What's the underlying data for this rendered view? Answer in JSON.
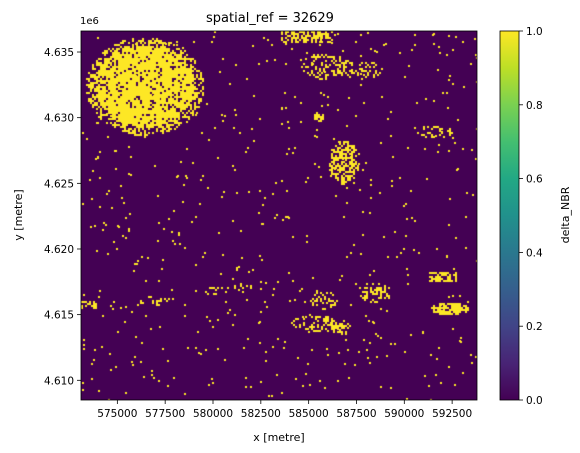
{
  "chart_data": {
    "type": "heatmap",
    "title": "spatial_ref = 32629",
    "xlabel": "x [metre]",
    "ylabel": "y [metre]",
    "y_offset_label": "1e6",
    "colorbar_label": "delta_NBR",
    "xlim": [
      573100,
      593800
    ],
    "ylim": [
      4.6085,
      4.6366
    ],
    "x_ticks": [
      {
        "value": 575000,
        "label": "575000"
      },
      {
        "value": 577500,
        "label": "577500"
      },
      {
        "value": 580000,
        "label": "580000"
      },
      {
        "value": 582500,
        "label": "582500"
      },
      {
        "value": 585000,
        "label": "585000"
      },
      {
        "value": 587500,
        "label": "587500"
      },
      {
        "value": 590000,
        "label": "590000"
      },
      {
        "value": 592500,
        "label": "592500"
      }
    ],
    "y_ticks": [
      {
        "value": 4.61,
        "label": "4.610"
      },
      {
        "value": 4.615,
        "label": "4.615"
      },
      {
        "value": 4.62,
        "label": "4.620"
      },
      {
        "value": 4.625,
        "label": "4.625"
      },
      {
        "value": 4.63,
        "label": "4.630"
      },
      {
        "value": 4.635,
        "label": "4.635"
      }
    ],
    "colorbar": {
      "range": [
        0.0,
        1.0
      ],
      "colormap": "viridis",
      "ticks": [
        {
          "value": 0.0,
          "label": "0.0"
        },
        {
          "value": 0.2,
          "label": "0.2"
        },
        {
          "value": 0.4,
          "label": "0.4"
        },
        {
          "value": 0.6,
          "label": "0.6"
        },
        {
          "value": 0.8,
          "label": "0.8"
        },
        {
          "value": 1.0,
          "label": "1.0"
        }
      ]
    },
    "background_value": 0,
    "colors": {
      "low": "#440154",
      "high": "#fde725"
    },
    "patches": [
      {
        "x": [
          573300,
          579500
        ],
        "y": [
          4.6287,
          4.6362
        ],
        "value": 1,
        "shape": "blob",
        "density": 0.85
      },
      {
        "x": [
          583600,
          586200
        ],
        "y": [
          4.6357,
          4.6367
        ],
        "value": 1,
        "shape": "strip",
        "density": 0.6
      },
      {
        "x": [
          584500,
          587000
        ],
        "y": [
          4.633,
          4.635
        ],
        "value": 1,
        "shape": "cluster",
        "density": 0.35
      },
      {
        "x": [
          586300,
          588800
        ],
        "y": [
          4.633,
          4.6345
        ],
        "value": 1,
        "shape": "cluster",
        "density": 0.3
      },
      {
        "x": [
          586000,
          587600
        ],
        "y": [
          4.625,
          4.6283
        ],
        "value": 1,
        "shape": "cluster",
        "density": 0.55
      },
      {
        "x": [
          585200,
          585800
        ],
        "y": [
          4.6298,
          4.6304
        ],
        "value": 1,
        "shape": "dot",
        "density": 0.9
      },
      {
        "x": [
          590500,
          592500
        ],
        "y": [
          4.6285,
          4.6295
        ],
        "value": 1,
        "shape": "cluster",
        "density": 0.3
      },
      {
        "x": [
          591300,
          593300
        ],
        "y": [
          4.615,
          4.616
        ],
        "value": 1,
        "shape": "cluster",
        "density": 0.8
      },
      {
        "x": [
          591300,
          592700
        ],
        "y": [
          4.6175,
          4.6182
        ],
        "value": 1,
        "shape": "strip",
        "density": 0.6
      },
      {
        "x": [
          587500,
          589300
        ],
        "y": [
          4.616,
          4.6175
        ],
        "value": 1,
        "shape": "cluster",
        "density": 0.4
      },
      {
        "x": [
          584000,
          587000
        ],
        "y": [
          4.6138,
          4.615
        ],
        "value": 1,
        "shape": "cluster",
        "density": 0.35
      },
      {
        "x": [
          585000,
          586500
        ],
        "y": [
          4.6155,
          4.617
        ],
        "value": 1,
        "shape": "cluster",
        "density": 0.25
      },
      {
        "x": [
          586200,
          587200
        ],
        "y": [
          4.6135,
          4.6145
        ],
        "value": 1,
        "shape": "cluster",
        "density": 0.5
      },
      {
        "x": [
          573100,
          573900
        ],
        "y": [
          4.6155,
          4.616
        ],
        "value": 1,
        "shape": "strip",
        "density": 0.6
      },
      {
        "x": [
          579500,
          580800
        ],
        "y": [
          4.6165,
          4.6172
        ],
        "value": 1,
        "shape": "cluster",
        "density": 0.3
      },
      {
        "x": [
          576000,
          578000
        ],
        "y": [
          4.6158,
          4.6165
        ],
        "value": 1,
        "shape": "cluster",
        "density": 0.25
      },
      {
        "x": [
          581000,
          582000
        ],
        "y": [
          4.6168,
          4.6175
        ],
        "value": 1,
        "shape": "cluster",
        "density": 0.25
      }
    ],
    "scatter_pixel_fraction": 0.004
  }
}
